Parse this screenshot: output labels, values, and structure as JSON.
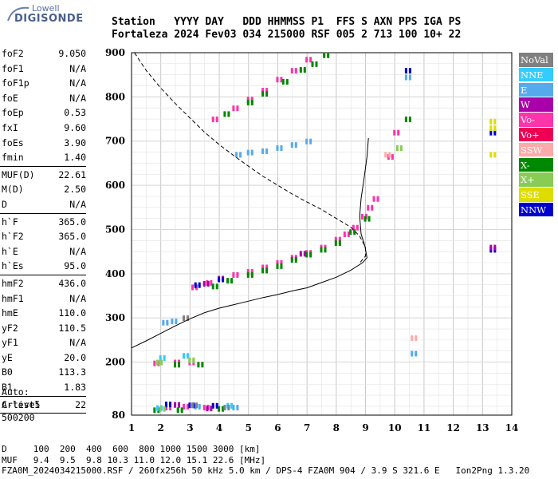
{
  "logo": {
    "top": "Lowell",
    "main": "DIGISONDE"
  },
  "header": {
    "line1": "Station   YYYY DAY   DDD HHMMSS P1  FFS S AXN PPS IGA PS",
    "line2": "Fortaleza 2024 Fev03 034 215000 RSF 005 2 713 100 10+ 22"
  },
  "params": [
    {
      "label": "foF2",
      "value": "9.050"
    },
    {
      "label": "foF1",
      "value": "N/A"
    },
    {
      "label": "foF1p",
      "value": "N/A"
    },
    {
      "label": "foE",
      "value": "N/A"
    },
    {
      "label": "foEp",
      "value": "0.53"
    },
    {
      "label": "fxI",
      "value": "9.60"
    },
    {
      "label": "foEs",
      "value": "3.90"
    },
    {
      "label": "fmin",
      "value": "1.40"
    },
    {
      "sep": true
    },
    {
      "label": "MUF(D)",
      "value": "22.61"
    },
    {
      "label": "M(D)",
      "value": "2.50"
    },
    {
      "label": "D",
      "value": "N/A"
    },
    {
      "sep": true
    },
    {
      "label": "h`F",
      "value": "365.0"
    },
    {
      "label": "h`F2",
      "value": "365.0"
    },
    {
      "label": "h`E",
      "value": "N/A"
    },
    {
      "label": "h`Es",
      "value": "95.0"
    },
    {
      "sep": true
    },
    {
      "label": "hmF2",
      "value": "436.0"
    },
    {
      "label": "hmF1",
      "value": "N/A"
    },
    {
      "label": "hmE",
      "value": "110.0"
    },
    {
      "label": "yF2",
      "value": "110.5"
    },
    {
      "label": "yF1",
      "value": "N/A"
    },
    {
      "label": "yE",
      "value": "20.0"
    },
    {
      "label": "B0",
      "value": "113.3"
    },
    {
      "label": "B1",
      "value": "1.83"
    },
    {
      "sep": true
    },
    {
      "label": "C-level",
      "value": "22"
    },
    {
      "sep": true
    }
  ],
  "auto": {
    "line1": "Auto:",
    "line2": "Artist5",
    "line3": "500200"
  },
  "legend": [
    {
      "label": "NoVal",
      "color": "#808080"
    },
    {
      "label": "NNE",
      "color": "#33ccff"
    },
    {
      "label": "E",
      "color": "#55aaee"
    },
    {
      "label": "W",
      "color": "#aa00aa"
    },
    {
      "label": "Vo-",
      "color": "#ff33aa"
    },
    {
      "label": "Vo+",
      "color": "#ee0055"
    },
    {
      "label": "SSW",
      "color": "#ffaaaa"
    },
    {
      "label": "X-",
      "color": "#008800"
    },
    {
      "label": "X+",
      "color": "#88cc55"
    },
    {
      "label": "SSE",
      "color": "#dddd00"
    },
    {
      "label": "NNW",
      "color": "#0000cc"
    }
  ],
  "bottom": {
    "line1": "D     100  200  400  600  800 1000 1500 3000 [km]",
    "line2": "MUF   9.4  9.5  9.8 10.3 11.0 12.0 15.1 22.6 [MHz]",
    "line3": "FZA0M_2024034215000.RSF / 260fx256h 50 kHz 5.0 km / DPS-4 FZA0M 904 / 3.9 S 321.6 E   Ion2Png 1.3.20"
  },
  "chart_data": {
    "type": "scatter",
    "xlim": [
      1,
      14
    ],
    "ylim": [
      80,
      900
    ],
    "x_ticks": [
      1,
      2,
      3,
      4,
      5,
      6,
      7,
      8,
      9,
      10,
      11,
      12,
      13,
      14
    ],
    "y_ticks": [
      80,
      200,
      300,
      400,
      500,
      600,
      700,
      800,
      900
    ],
    "grid": true,
    "series": [
      {
        "name": "Vo-",
        "color": "#ff33aa",
        "points": [
          [
            3.1,
            370
          ],
          [
            3.6,
            380
          ],
          [
            4.0,
            390
          ],
          [
            4.5,
            398
          ],
          [
            5.0,
            405
          ],
          [
            5.5,
            415
          ],
          [
            6.0,
            425
          ],
          [
            6.5,
            437
          ],
          [
            7.0,
            448
          ],
          [
            7.5,
            460
          ],
          [
            8.0,
            478
          ],
          [
            8.3,
            490
          ],
          [
            8.6,
            505
          ],
          [
            8.9,
            530
          ],
          [
            9.1,
            550
          ],
          [
            9.3,
            570
          ],
          [
            3.8,
            750
          ],
          [
            4.5,
            775
          ],
          [
            5.0,
            795
          ],
          [
            5.5,
            815
          ],
          [
            6.0,
            840
          ],
          [
            6.5,
            860
          ],
          [
            7.0,
            885
          ],
          [
            10.0,
            720
          ],
          [
            9.8,
            665
          ],
          [
            1.8,
            198
          ],
          [
            2.5,
            200
          ],
          [
            3.0,
            200
          ],
          [
            2.2,
            98
          ],
          [
            2.8,
            100
          ],
          [
            3.5,
            98
          ]
        ]
      },
      {
        "name": "X-",
        "color": "#008800",
        "points": [
          [
            3.8,
            372
          ],
          [
            4.3,
            385
          ],
          [
            5.0,
            398
          ],
          [
            5.5,
            408
          ],
          [
            6.0,
            418
          ],
          [
            6.5,
            432
          ],
          [
            7.0,
            444
          ],
          [
            7.5,
            455
          ],
          [
            8.0,
            470
          ],
          [
            8.5,
            495
          ],
          [
            9.0,
            525
          ],
          [
            4.2,
            762
          ],
          [
            5.0,
            788
          ],
          [
            5.5,
            808
          ],
          [
            6.2,
            835
          ],
          [
            6.8,
            862
          ],
          [
            7.2,
            875
          ],
          [
            7.6,
            895
          ],
          [
            10.4,
            750
          ],
          [
            2.5,
            195
          ],
          [
            3.3,
            195
          ],
          [
            1.8,
            92
          ],
          [
            2.6,
            92
          ],
          [
            4.0,
            95
          ]
        ]
      },
      {
        "name": "E",
        "color": "#55aaee",
        "points": [
          [
            4.6,
            670
          ],
          [
            5.0,
            675
          ],
          [
            5.5,
            678
          ],
          [
            6.0,
            685
          ],
          [
            6.5,
            692
          ],
          [
            7.0,
            700
          ],
          [
            10.6,
            220
          ],
          [
            10.4,
            845
          ],
          [
            2.1,
            290
          ],
          [
            2.4,
            293
          ],
          [
            3.2,
            100
          ],
          [
            4.5,
            98
          ]
        ]
      },
      {
        "name": "NNW",
        "color": "#0000cc",
        "points": [
          [
            3.2,
            375
          ],
          [
            4.0,
            388
          ],
          [
            2.2,
            105
          ],
          [
            3.0,
            103
          ],
          [
            3.8,
            102
          ],
          [
            13.3,
            455
          ],
          [
            13.3,
            720
          ],
          [
            10.4,
            860
          ]
        ]
      },
      {
        "name": "W",
        "color": "#aa00aa",
        "points": [
          [
            3.5,
            378
          ],
          [
            6.8,
            446
          ],
          [
            13.3,
            460
          ],
          [
            2.5,
            104
          ],
          [
            3.6,
            96
          ]
        ]
      },
      {
        "name": "SSE",
        "color": "#dddd00",
        "points": [
          [
            13.3,
            745
          ],
          [
            13.3,
            670
          ],
          [
            13.3,
            730
          ]
        ]
      },
      {
        "name": "NNE",
        "color": "#33ccff",
        "points": [
          [
            2.0,
            210
          ],
          [
            2.8,
            215
          ],
          [
            4.3,
            102
          ],
          [
            1.9,
            97
          ]
        ]
      },
      {
        "name": "X+",
        "color": "#88cc55",
        "points": [
          [
            1.9,
            200
          ],
          [
            3.0,
            205
          ],
          [
            10.1,
            685
          ],
          [
            2.0,
            95
          ]
        ]
      },
      {
        "name": "SSW",
        "color": "#ffaaaa",
        "points": [
          [
            10.6,
            255
          ],
          [
            9.7,
            670
          ]
        ]
      },
      {
        "name": "NoVal",
        "color": "#808080",
        "points": [
          [
            2.8,
            300
          ],
          [
            3.1,
            103
          ],
          [
            4.2,
            98
          ]
        ]
      }
    ],
    "profile_curve": [
      [
        1.0,
        232
      ],
      [
        1.5,
        248
      ],
      [
        2.0,
        265
      ],
      [
        2.5,
        282
      ],
      [
        3.0,
        298
      ],
      [
        3.5,
        312
      ],
      [
        4.0,
        322
      ],
      [
        4.5,
        330
      ],
      [
        5.0,
        338
      ],
      [
        5.5,
        346
      ],
      [
        6.0,
        353
      ],
      [
        6.5,
        361
      ],
      [
        7.0,
        368
      ],
      [
        7.5,
        380
      ],
      [
        8.0,
        392
      ],
      [
        8.5,
        408
      ],
      [
        8.9,
        425
      ],
      [
        9.05,
        436
      ],
      [
        8.98,
        462
      ],
      [
        8.85,
        490
      ],
      [
        8.8,
        530
      ],
      [
        8.85,
        570
      ],
      [
        8.95,
        615
      ],
      [
        9.05,
        665
      ],
      [
        9.1,
        707
      ]
    ],
    "muf_curve": [
      [
        1.1,
        900
      ],
      [
        1.5,
        860
      ],
      [
        2.0,
        820
      ],
      [
        2.5,
        785
      ],
      [
        3.0,
        752
      ],
      [
        3.5,
        720
      ],
      [
        4.0,
        692
      ],
      [
        4.5,
        667
      ],
      [
        5.0,
        643
      ],
      [
        5.5,
        620
      ],
      [
        6.0,
        600
      ],
      [
        6.5,
        580
      ],
      [
        7.0,
        562
      ],
      [
        7.5,
        545
      ],
      [
        8.0,
        525
      ],
      [
        8.5,
        505
      ],
      [
        8.8,
        485
      ],
      [
        9.0,
        460
      ],
      [
        9.0,
        440
      ],
      [
        8.8,
        424
      ]
    ]
  }
}
